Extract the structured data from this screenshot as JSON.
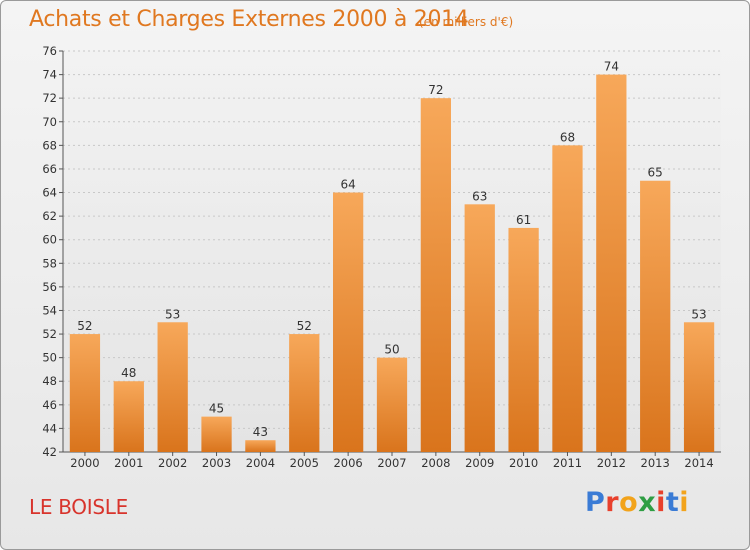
{
  "header": {
    "title": "Achats et Charges Externes 2000 à 2014",
    "subtitle": "(en milliers d'€)"
  },
  "footer": {
    "commune": "LE BOISLE",
    "logo": "Proxiti"
  },
  "colors": {
    "accent": "#e07820",
    "commune": "#d8342c",
    "bar_top": "#f7a85a",
    "bar_bottom": "#d9741c"
  },
  "chart_data": {
    "type": "bar",
    "title": "Achats et Charges Externes 2000 à 2014",
    "subtitle": "(en milliers d'€)",
    "xlabel": "",
    "ylabel": "",
    "categories": [
      "2000",
      "2001",
      "2002",
      "2003",
      "2004",
      "2005",
      "2006",
      "2007",
      "2008",
      "2009",
      "2010",
      "2011",
      "2012",
      "2013",
      "2014"
    ],
    "values": [
      52,
      48,
      53,
      45,
      43,
      52,
      64,
      50,
      72,
      63,
      61,
      68,
      74,
      65,
      53
    ],
    "ylim": [
      42,
      76
    ],
    "yticks": [
      42,
      44,
      46,
      48,
      50,
      52,
      54,
      56,
      58,
      60,
      62,
      64,
      66,
      68,
      70,
      72,
      74,
      76
    ],
    "grid": true
  }
}
